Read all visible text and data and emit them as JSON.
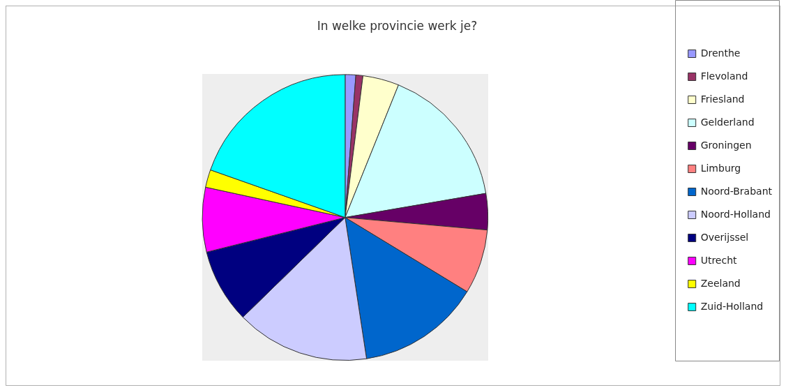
{
  "chart_data": {
    "type": "pie",
    "title": "In welke provincie werk je?",
    "categories": [
      "Drenthe",
      "Flevoland",
      "Friesland",
      "Gelderland",
      "Groningen",
      "Limburg",
      "Noord-Brabant",
      "Noord-Holland",
      "Overijssel",
      "Utrecht",
      "Zeeland",
      "Zuid-Holland"
    ],
    "values": [
      1.2,
      0.8,
      4.1,
      16.2,
      4.1,
      7.3,
      13.9,
      15.1,
      8.4,
      7.3,
      2.0,
      19.6
    ],
    "colors": [
      "#9999ff",
      "#993366",
      "#ffffcc",
      "#ccffff",
      "#660066",
      "#ff8080",
      "#0066cc",
      "#ccccff",
      "#000080",
      "#ff00ff",
      "#ffff00",
      "#00ffff"
    ],
    "legend": "right"
  }
}
